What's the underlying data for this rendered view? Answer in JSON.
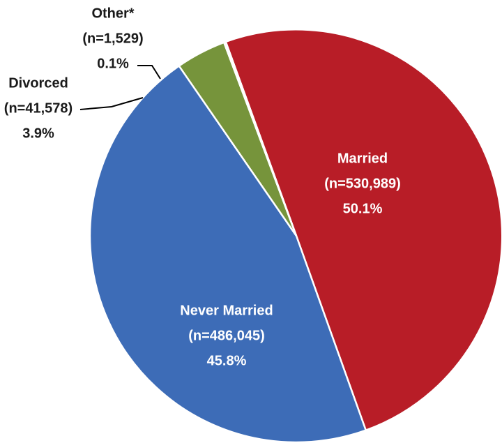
{
  "chart_data": {
    "type": "pie",
    "title": "",
    "start_angle_deg": -20,
    "direction": "clockwise",
    "slices": [
      {
        "label": "Married",
        "n_label": "(n=530,989)",
        "pct_label": "50.1%",
        "value": 530989,
        "percent": 50.1,
        "color": "#b81d27",
        "label_position": "inside"
      },
      {
        "label": "Never Married",
        "n_label": "(n=486,045)",
        "pct_label": "45.8%",
        "value": 486045,
        "percent": 45.8,
        "color": "#3d6cb7",
        "label_position": "inside"
      },
      {
        "label": "Divorced",
        "n_label": "(n=41,578)",
        "pct_label": "3.9%",
        "value": 41578,
        "percent": 3.9,
        "color": "#76943b",
        "label_position": "outside"
      },
      {
        "label": "Other*",
        "n_label": "(n=1,529)",
        "pct_label": "0.1%",
        "value": 1529,
        "percent": 0.1,
        "color": "#ffffff",
        "label_position": "outside"
      }
    ]
  }
}
